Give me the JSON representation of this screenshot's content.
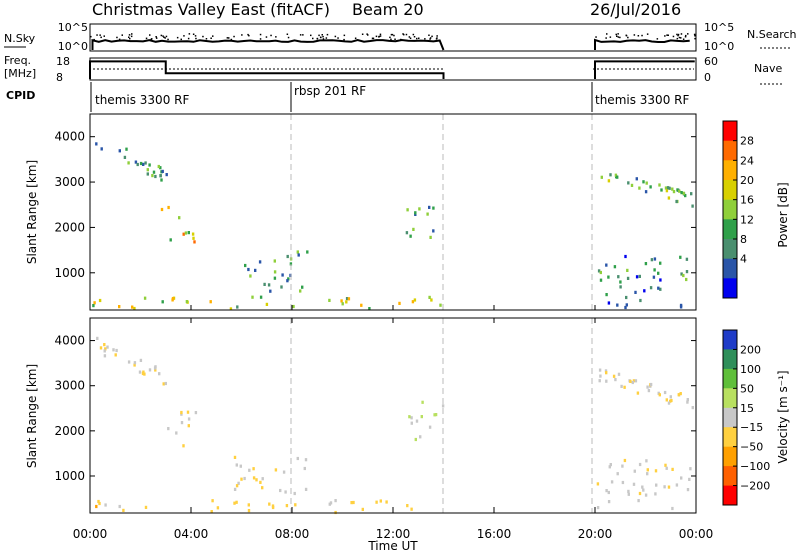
{
  "header": {
    "title": "Christmas Valley East (fitACF)",
    "beam": "Beam 20",
    "date": "26/Jul/2016"
  },
  "top_panels": {
    "nsky_label": "N.Sky",
    "nsky_ticks": [
      "10^5",
      "10^0"
    ],
    "nsearch_label": "N.Search",
    "nsearch_ticks": [
      "10^5",
      "10^0"
    ],
    "freq_label_1": "Freq.",
    "freq_label_2": "[MHz]",
    "freq_ticks": [
      "18",
      "8"
    ],
    "nave_label": "Nave",
    "nave_ticks": [
      "60",
      "0"
    ],
    "cpid_label": "CPID",
    "cpid_entries": [
      "themis 3300 RF",
      "rbsp 201 RF",
      "themis 3300 RF"
    ]
  },
  "axes": {
    "ylabel": "Slant Range [km]",
    "yticks": [
      "4000",
      "3000",
      "2000",
      "1000"
    ],
    "xticks": [
      "00:00",
      "04:00",
      "08:00",
      "12:00",
      "16:00",
      "20:00",
      "00:00"
    ],
    "xlabel": "Time UT"
  },
  "power_colorbar": {
    "label": "Power [dB]",
    "ticks": [
      "28",
      "24",
      "20",
      "16",
      "12",
      "8",
      "4"
    ],
    "colors": [
      "#ff0000",
      "#ff6a00",
      "#ffb000",
      "#d8d000",
      "#8fcf3a",
      "#2fa04a",
      "#4a8f6f",
      "#2a55a8",
      "#0000ee"
    ]
  },
  "velocity_colorbar": {
    "label": "Velocity [m s⁻¹]",
    "ticks": [
      "200",
      "100",
      "50",
      "15",
      "−15",
      "−50",
      "−100",
      "−200"
    ],
    "colors": [
      "#1f3cc8",
      "#2f8f5a",
      "#5fbf3a",
      "#b8e060",
      "#c8c8c8",
      "#ffd040",
      "#ffa000",
      "#ff6000",
      "#ff0000"
    ]
  },
  "chart_data": {
    "type": "heatmap",
    "title": "Christmas Valley East (fitACF)",
    "xlabel": "Time UT",
    "ylabel": "Slant Range [km]",
    "xlim": [
      0,
      24
    ],
    "ylim": [
      180,
      4500
    ],
    "data_gap_hours": [
      14.0,
      20.0
    ],
    "cpid_changes_hours": [
      0.0,
      8.0,
      20.0
    ],
    "cpid_values": [
      "themis 3300 RF",
      "rbsp 201 RF",
      "themis 3300 RF"
    ],
    "freq_MHz": [
      {
        "start": 0.0,
        "end": 3.0,
        "value": 17
      },
      {
        "start": 3.0,
        "end": 14.0,
        "value": 10
      },
      {
        "start": 20.0,
        "end": 24.0,
        "value": 17
      }
    ],
    "echo_regions": [
      {
        "t0": 0.2,
        "t1": 3.0,
        "r0": 3000,
        "r1": 4000,
        "power_dB": 10,
        "velocity_ms": -15
      },
      {
        "t0": 2.8,
        "t1": 4.2,
        "r0": 1700,
        "r1": 2500,
        "power_dB": 20,
        "velocity_ms": -15
      },
      {
        "t0": 5.6,
        "t1": 8.6,
        "r0": 600,
        "r1": 1500,
        "power_dB": 10,
        "velocity_ms": -15
      },
      {
        "t0": 0.0,
        "t1": 14.0,
        "r0": 180,
        "r1": 500,
        "power_dB": 16,
        "velocity_ms": -50
      },
      {
        "t0": 12.5,
        "t1": 14.0,
        "r0": 1800,
        "r1": 2700,
        "power_dB": 10,
        "velocity_ms": 15
      },
      {
        "t0": 20.0,
        "t1": 24.0,
        "r0": 2400,
        "r1": 3400,
        "power_dB": 12,
        "velocity_ms": -15
      },
      {
        "t0": 20.0,
        "t1": 24.0,
        "r0": 180,
        "r1": 1400,
        "power_dB": 8,
        "velocity_ms": -15
      }
    ],
    "power_range_dB": [
      0,
      30
    ],
    "velocity_range_ms": [
      -250,
      250
    ]
  }
}
